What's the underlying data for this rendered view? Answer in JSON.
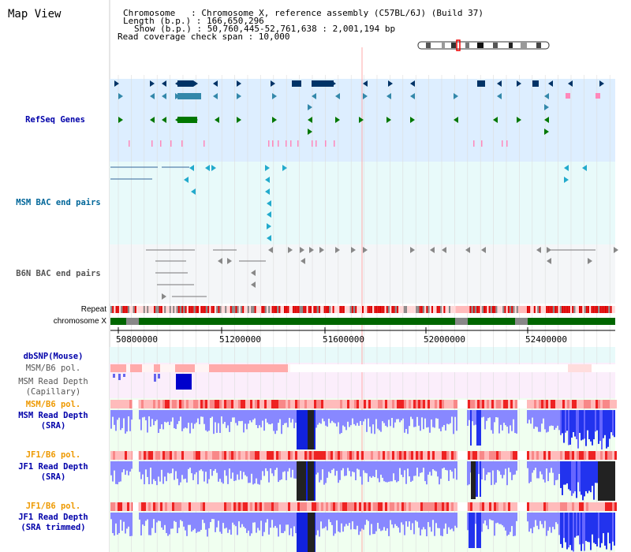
{
  "app": {
    "title": "Map View"
  },
  "header": {
    "chromosome_line": "Chromosome   : Chromosome X, reference assembly (C57BL/6J) (Build 37)",
    "length_line": "Length (b.p.) : 166,650,296",
    "show_line": "Show (b.p.) : 50,760,445-52,761,638 : 2,001,194 bp",
    "coverage_line": "Read coverage check span : 10,000"
  },
  "tracks": {
    "refseq": {
      "label": "RefSeq Genes",
      "color": "#0000aa"
    },
    "msm_bac": {
      "label": "MSM BAC end pairs",
      "color": "#006699"
    },
    "b6n_bac": {
      "label": "B6N BAC end pairs",
      "color": "#555555"
    },
    "repeat": {
      "label": "Repeat"
    },
    "chromosome": {
      "label": "chromosome X"
    },
    "dbsnp": {
      "label": "dbSNP(Mouse)",
      "color": "#0000aa"
    },
    "msm_b6_pol_cap": {
      "label": "MSM/B6 pol.",
      "color": "#555555"
    },
    "msm_depth_cap": {
      "label": "MSM Read Depth\n(Capillary)",
      "color": "#555555"
    },
    "msm_b6_pol_sra": {
      "label": "MSM/B6 pol.",
      "color": "#ee9900"
    },
    "msm_depth_sra": {
      "label": "MSM Read Depth\n(SRA)",
      "color": "#0000aa"
    },
    "jf1_b6_pol_sra": {
      "label": "JF1/B6 pol.",
      "color": "#ee9900"
    },
    "jf1_depth_sra": {
      "label": "JF1 Read Depth\n(SRA)",
      "color": "#0000aa"
    },
    "jf1_b6_pol_trim": {
      "label": "JF1/B6 pol.",
      "color": "#ee9900"
    },
    "jf1_depth_trim": {
      "label": "JF1 Read Depth\n(SRA trimmed)",
      "color": "#0000aa"
    }
  },
  "axis": {
    "ticks": [
      "50800000",
      "51200000",
      "51600000",
      "52000000",
      "52400000"
    ]
  },
  "colors": {
    "refseq_bg": "#ddeeff",
    "bac_bg": "#e8fafa",
    "b6n_bg": "#f4f6f8",
    "gene_dark": "#003366",
    "gene_mid": "#3388aa",
    "gene_green": "#007700",
    "pink": "#ff88bb",
    "chromosome_green": "#006600",
    "depth_blue": "#2233ee",
    "depth_light": "#8888ff",
    "pol_red": "#ee2222",
    "pol_light": "#ffbbbb"
  }
}
